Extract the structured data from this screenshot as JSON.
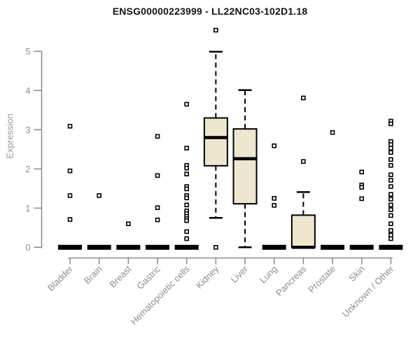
{
  "chart_data": {
    "type": "box",
    "title": "ENSG00000223999 - LL22NC03-102D1.18",
    "ylabel": "Expression",
    "xlabel": "",
    "ylim": [
      0,
      5
    ],
    "yticks": [
      0,
      1,
      2,
      3,
      4,
      5
    ],
    "grid": false,
    "legend": "none",
    "colors": {
      "box_fill": "#EDE7CF",
      "box_stroke": "#000000",
      "axis": "#8a8a8a",
      "tick_label": "#8e8e8e",
      "title": "#141414"
    },
    "categories": [
      "Bladder",
      "Brain",
      "Breast",
      "Gastric",
      "Hematopoietic cells",
      "Kidney",
      "Liver",
      "Lung",
      "Pancreas",
      "Prostate",
      "Skin",
      "Unknown / Other"
    ],
    "series": [
      {
        "category": "Bladder",
        "low": 0,
        "q1": 0,
        "median": 0,
        "q3": 0,
        "high": 0,
        "outliers": [
          3.09,
          1.95,
          1.32,
          0.71
        ]
      },
      {
        "category": "Brain",
        "low": 0,
        "q1": 0,
        "median": 0,
        "q3": 0,
        "high": 0,
        "outliers": [
          1.32
        ]
      },
      {
        "category": "Breast",
        "low": 0,
        "q1": 0,
        "median": 0,
        "q3": 0,
        "high": 0,
        "outliers": [
          0.6
        ]
      },
      {
        "category": "Gastric",
        "low": 0,
        "q1": 0,
        "median": 0,
        "q3": 0,
        "high": 0,
        "outliers": [
          2.83,
          1.83,
          1.01,
          0.7
        ]
      },
      {
        "category": "Hematopoietic cells",
        "low": 0,
        "q1": 0,
        "median": 0,
        "q3": 0,
        "high": 0,
        "outliers": [
          3.65,
          2.53,
          2.09,
          2.02,
          1.87,
          1.55,
          1.49,
          1.32,
          1.26,
          1.08,
          0.93,
          0.86,
          0.79,
          0.73,
          0.68,
          0.4,
          0.22
        ]
      },
      {
        "category": "Kidney",
        "low": 0.75,
        "q1": 2.08,
        "median": 2.8,
        "q3": 3.3,
        "high": 4.99,
        "outliers": [
          5.54,
          0
        ]
      },
      {
        "category": "Liver",
        "low": 0,
        "q1": 1.11,
        "median": 2.26,
        "q3": 3.02,
        "high": 4.01,
        "outliers": []
      },
      {
        "category": "Lung",
        "low": 0,
        "q1": 0,
        "median": 0,
        "q3": 0,
        "high": 0,
        "outliers": [
          2.59,
          1.25,
          1.07
        ]
      },
      {
        "category": "Pancreas",
        "low": 0,
        "q1": 0,
        "median": 0,
        "q3": 0.82,
        "high": 1.41,
        "outliers": [
          3.81,
          2.19
        ]
      },
      {
        "category": "Prostate",
        "low": 0,
        "q1": 0,
        "median": 0,
        "q3": 0,
        "high": 0,
        "outliers": [
          2.93
        ]
      },
      {
        "category": "Skin",
        "low": 0,
        "q1": 0,
        "median": 0,
        "q3": 0,
        "high": 0,
        "outliers": [
          1.92,
          1.59,
          1.53,
          1.24
        ]
      },
      {
        "category": "Unknown / Other",
        "low": 0,
        "q1": 0,
        "median": 0,
        "q3": 0,
        "high": 0,
        "outliers": [
          3.22,
          3.15,
          2.7,
          2.62,
          2.53,
          2.42,
          2.24,
          2.09,
          1.85,
          1.71,
          1.55,
          1.35,
          1.23,
          1.08,
          0.96,
          0.81,
          0.6,
          0.43,
          0.31,
          0.22
        ]
      }
    ]
  }
}
